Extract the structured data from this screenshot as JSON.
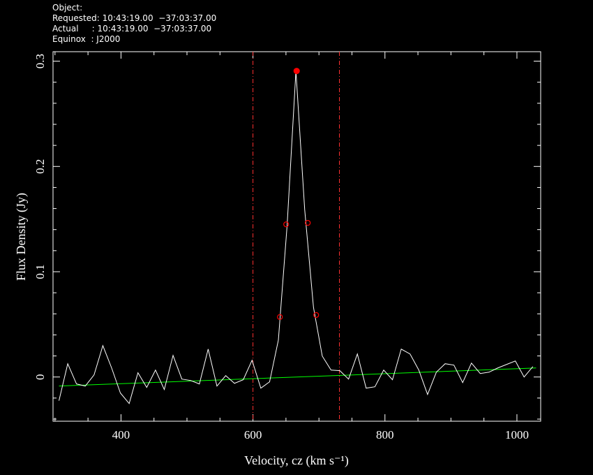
{
  "chart_data": {
    "type": "line",
    "header": [
      "Object:",
      "Requested: 10:43:19.00  −37:03:37.00",
      "Actual     : 10:43:19.00  −37:03:37.00",
      "Equinox  : J2000"
    ],
    "xlabel": "Velocity, cz (km s⁻¹)",
    "ylabel": "Flux Density (Jy)",
    "x": [
      306,
      319.3,
      332.6,
      345.9,
      359.2,
      372.5,
      385.8,
      399.1,
      412.4,
      425.7,
      439,
      452.3,
      465.6,
      478.9,
      492.2,
      505.5,
      518.8,
      532.1,
      545.4,
      558.7,
      572,
      585.3,
      598.6,
      611.9,
      625.2,
      638.5,
      651.8,
      665.1,
      678.4,
      691.7,
      705,
      718.3,
      731.6,
      744.9,
      758.2,
      771.5,
      784.8,
      798.1,
      811.4,
      824.7,
      838,
      851.3,
      864.6,
      877.9,
      891.2,
      904.5,
      917.8,
      931.1,
      944.4,
      957.7,
      971,
      984.3,
      997.6,
      1010.9,
      1024.2
    ],
    "series": [
      {
        "name": "spectrum",
        "color": "#ffffff",
        "values": [
          -0.0225,
          0.0126,
          -0.0066,
          -0.0086,
          0.002,
          0.0298,
          0.0086,
          -0.0152,
          -0.0252,
          0.004,
          -0.0099,
          0.0066,
          -0.0119,
          0.0205,
          -0.002,
          -0.0033,
          -0.0066,
          0.0265,
          -0.0086,
          0.0013,
          -0.006,
          -0.0026,
          0.0159,
          -0.0106,
          -0.0046,
          0.0351,
          0.1444,
          0.2907,
          0.1589,
          0.0662,
          0.0199,
          0.0066,
          0.006,
          -0.002,
          0.0219,
          -0.0106,
          -0.0093,
          0.0066,
          -0.0026,
          0.0265,
          0.0219,
          0.0066,
          -0.0166,
          0.0046,
          0.0126,
          0.0113,
          -0.0053,
          0.0132,
          0.0033,
          0.0046,
          0.0086,
          0.0119,
          0.0152,
          0,
          0.0099
        ]
      }
    ],
    "baseline": {
      "color": "#00ff00",
      "x": [
        306,
        1029
      ],
      "values": [
        -0.0086,
        0.0086
      ]
    },
    "window": {
      "color": "#ff3030",
      "x": [
        600,
        731
      ]
    },
    "markers": {
      "color": "#ff0000",
      "x": [
        666.2,
        640.8,
        695.8,
        650.3,
        683.1
      ],
      "values": [
        0.2907,
        0.057,
        0.0589,
        0.145,
        0.1464
      ]
    },
    "xlim": [
      297,
      1036
    ],
    "ylim": [
      -0.042,
      0.309
    ],
    "xticks": [
      400,
      600,
      800,
      1000
    ],
    "yticks": [
      0,
      0.1,
      0.2,
      0.3
    ],
    "xminor_ticks": [
      300,
      350,
      450,
      500,
      550,
      650,
      700,
      750,
      850,
      900,
      950
    ],
    "yminor_ticks": [
      -0.04,
      -0.02,
      0.02,
      0.04,
      0.06,
      0.08,
      0.12,
      0.14,
      0.16,
      0.18,
      0.22,
      0.24,
      0.26,
      0.28
    ]
  }
}
